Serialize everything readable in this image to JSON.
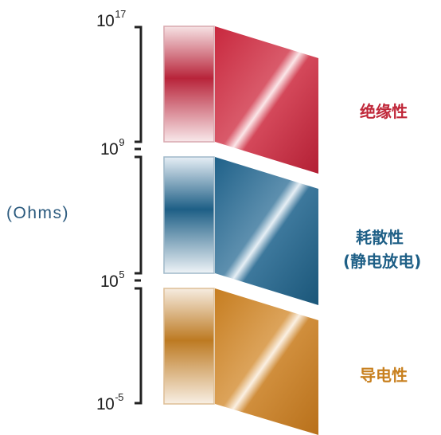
{
  "axis": {
    "unit": "(Ohms)",
    "ticks": [
      {
        "base": "10",
        "exp": "17"
      },
      {
        "base": "10",
        "exp": "9"
      },
      {
        "base": "10",
        "exp": "5"
      },
      {
        "base": "10",
        "exp": "-5"
      }
    ]
  },
  "bands": [
    {
      "label": "绝缘性",
      "sublabel": "",
      "color": "#c0283a"
    },
    {
      "label": "耗散性",
      "sublabel": "(静电放电)",
      "color": "#1e5f86"
    },
    {
      "label": "导电性",
      "sublabel": "",
      "color": "#c8801f"
    }
  ],
  "colors": {
    "unit_text": "#2b5a7e",
    "axis_line": "#222222"
  }
}
